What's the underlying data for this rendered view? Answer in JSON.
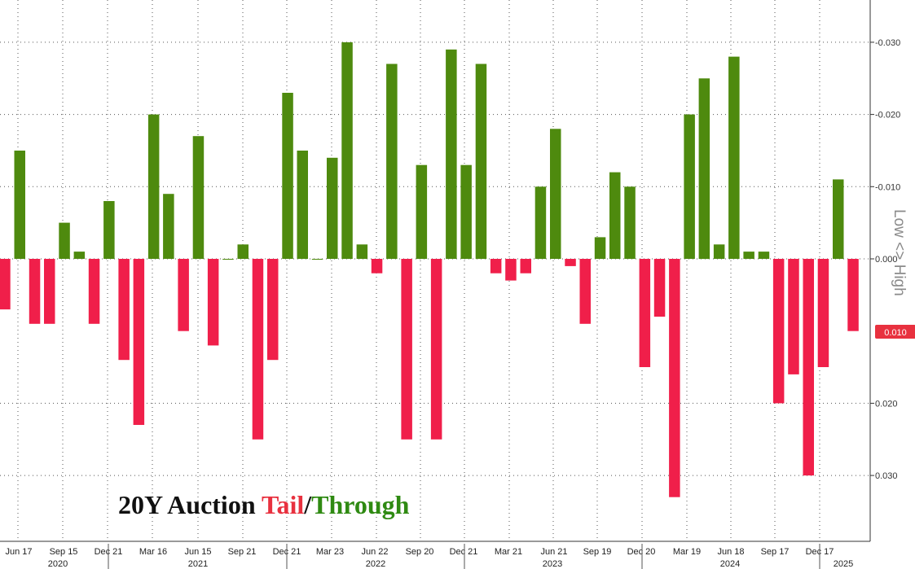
{
  "chart_data": {
    "type": "bar",
    "title_parts": [
      {
        "text": "20Y Auction ",
        "color": "#111111"
      },
      {
        "text": "Tail",
        "color": "#e8313f"
      },
      {
        "text": "/",
        "color": "#111111"
      },
      {
        "text": "Through",
        "color": "#2f8a12"
      }
    ],
    "y_axis_title": "Low <> High",
    "y_axis_inverted": true,
    "ylim": [
      0.038,
      -0.036
    ],
    "y_ticks": [
      {
        "value": -0.03,
        "label": "-0.030"
      },
      {
        "value": -0.02,
        "label": "-0.020"
      },
      {
        "value": -0.01,
        "label": "-0.010"
      },
      {
        "value": 0.0,
        "label": "0.000"
      },
      {
        "value": 0.02,
        "label": "0.020"
      },
      {
        "value": 0.03,
        "label": "0.030"
      }
    ],
    "last_value": {
      "value": 0.01,
      "label": "0.010",
      "color": "#e8313f"
    },
    "colors": {
      "through": "#4e8a0e",
      "tail": "#f01f4a",
      "grid": "#555555"
    },
    "x_month_labels": [
      "Jun 17",
      "Sep 15",
      "Dec 21",
      "Mar 16",
      "Jun 15",
      "Sep 21",
      "Dec 21",
      "Mar 23",
      "Jun 22",
      "Sep 20",
      "Dec 21",
      "Mar 21",
      "Jun 21",
      "Sep 19",
      "Dec 20",
      "Mar 19",
      "Jun 18",
      "Sep 17",
      "Dec 17"
    ],
    "x_year_labels": [
      "2020",
      "2021",
      "2022",
      "2023",
      "2024",
      "2025"
    ],
    "values": [
      0.007,
      -0.015,
      0.009,
      0.009,
      -0.005,
      -0.001,
      0.009,
      -0.008,
      0.014,
      0.023,
      -0.02,
      -0.009,
      0.01,
      -0.017,
      0.012,
      0.0,
      -0.002,
      0.025,
      0.014,
      -0.023,
      -0.015,
      0.0,
      -0.014,
      -0.03,
      -0.002,
      0.002,
      -0.027,
      0.025,
      -0.013,
      0.025,
      -0.029,
      -0.013,
      -0.027,
      0.002,
      0.003,
      0.002,
      -0.01,
      -0.018,
      0.001,
      0.009,
      -0.003,
      -0.012,
      -0.01,
      0.015,
      0.008,
      0.033,
      -0.02,
      -0.025,
      -0.002,
      -0.028,
      -0.001,
      -0.001,
      0.02,
      0.016,
      0.03,
      0.015,
      -0.011,
      0.01
    ]
  }
}
